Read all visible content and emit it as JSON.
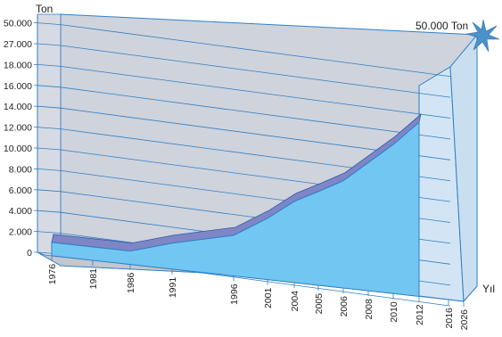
{
  "chart_data": {
    "type": "area",
    "title": "",
    "ylabel": "Ton",
    "xlabel": "Yıl",
    "y_tick_labels": [
      "0",
      "2.000",
      "4.000",
      "6.000",
      "8.000",
      "10.000",
      "12.000",
      "14.000",
      "16.000",
      "18.000",
      "27.000",
      "50.000"
    ],
    "x_tick_labels": [
      "1976",
      "1981",
      "1986",
      "1991",
      "1996",
      "2001",
      "2004",
      "2005",
      "2006",
      "2008",
      "2010",
      "2012",
      "2016",
      "2026"
    ],
    "y_scale": "categorical-nonlinear",
    "series": [
      {
        "x": [
          "1976",
          "1981",
          "1986",
          "1991",
          "1996",
          "2001",
          "2004",
          "2005",
          "2006",
          "2008",
          "2010",
          "2012"
        ],
        "values": [
          600,
          600,
          600,
          1800,
          3200,
          5200,
          7100,
          8300,
          9600,
          11600,
          13600,
          16000
        ]
      }
    ],
    "annotation": "50.000 Ton",
    "grid": true,
    "colors": {
      "area_front": "#72c6f2",
      "area_top": "#7f86c6",
      "back_wall": "#cfd3dc",
      "floor": "#c4c7cc",
      "projection_band": "#d3e5f4",
      "grid_line": "#2e7fc6",
      "star": "#4a93c9"
    }
  }
}
